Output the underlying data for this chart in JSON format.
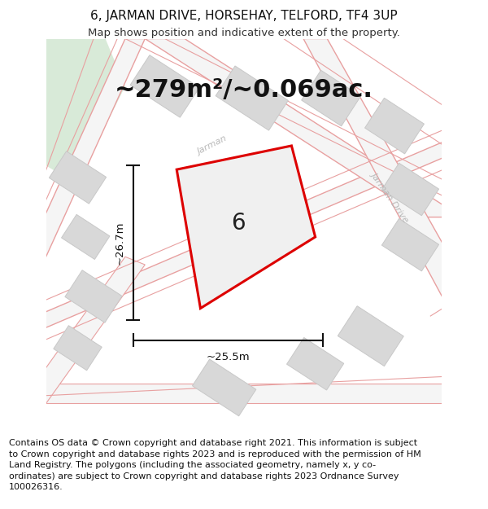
{
  "title_line1": "6, JARMAN DRIVE, HORSEHAY, TELFORD, TF4 3UP",
  "title_line2": "Map shows position and indicative extent of the property.",
  "area_text": "~279m²/~0.069ac.",
  "dim_height": "~26.7m",
  "dim_width": "~25.5m",
  "plot_number": "6",
  "copyright_text": "Contains OS data © Crown copyright and database right 2021. This information is subject to Crown copyright and database rights 2023 and is reproduced with the permission of HM Land Registry. The polygons (including the associated geometry, namely x, y co-ordinates) are subject to Crown copyright and database rights 2023 Ordnance Survey 100026316.",
  "map_bg": "#f8f8f8",
  "road_color": "#e8a0a0",
  "road_fill": "#f5f5f5",
  "building_color": "#d8d8d8",
  "building_edge": "#c8c8c8",
  "plot_edge_color": "#dd0000",
  "plot_fill_color": "#f0f0f0",
  "green_color": "#d8ead8",
  "dim_color": "#111111",
  "road_label_color": "#b8b8b8",
  "title_fontsize": 11,
  "subtitle_fontsize": 9.5,
  "area_fontsize": 22,
  "dim_fontsize": 9.5,
  "plot_label_fontsize": 20,
  "copy_fontsize": 8.0
}
